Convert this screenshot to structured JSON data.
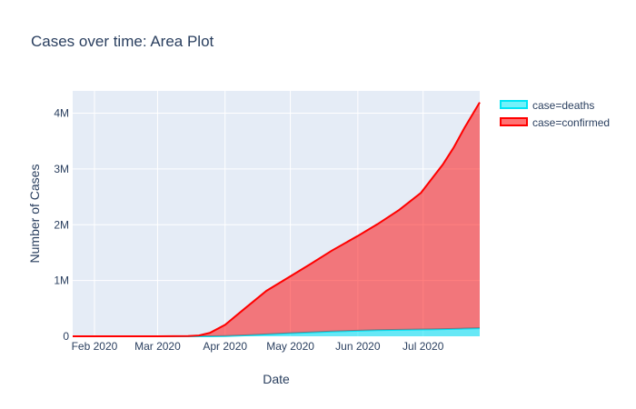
{
  "chart_data": {
    "type": "area",
    "title": "Cases over time: Area Plot",
    "xlabel": "Date",
    "ylabel": "Number of Cases",
    "x_range": [
      "2020-01-22",
      "2020-07-27"
    ],
    "ylim": [
      0,
      4400000
    ],
    "stacked": true,
    "grid": true,
    "legend_position": "top-right",
    "x_ticks": [
      {
        "date": "2020-02-01",
        "label": "Feb 2020"
      },
      {
        "date": "2020-03-01",
        "label": "Mar 2020"
      },
      {
        "date": "2020-04-01",
        "label": "Apr 2020"
      },
      {
        "date": "2020-05-01",
        "label": "May 2020"
      },
      {
        "date": "2020-06-01",
        "label": "Jun 2020"
      },
      {
        "date": "2020-07-01",
        "label": "Jul 2020"
      }
    ],
    "y_ticks": [
      {
        "value": 0,
        "label": "0"
      },
      {
        "value": 1000000,
        "label": "1M"
      },
      {
        "value": 2000000,
        "label": "2M"
      },
      {
        "value": 3000000,
        "label": "3M"
      },
      {
        "value": 4000000,
        "label": "4M"
      }
    ],
    "x": [
      "2020-01-22",
      "2020-03-01",
      "2020-03-15",
      "2020-03-20",
      "2020-03-25",
      "2020-04-01",
      "2020-04-10",
      "2020-04-20",
      "2020-05-01",
      "2020-05-10",
      "2020-05-20",
      "2020-06-01",
      "2020-06-10",
      "2020-06-20",
      "2020-06-30",
      "2020-07-05",
      "2020-07-10",
      "2020-07-15",
      "2020-07-20",
      "2020-07-27"
    ],
    "series": [
      {
        "name": "case=deaths",
        "color": "#00e5f5",
        "values": [
          0,
          1,
          50,
          200,
          1000,
          5000,
          16000,
          35000,
          55000,
          70000,
          85000,
          100000,
          110000,
          116000,
          122000,
          125000,
          128000,
          132000,
          138000,
          145000
        ]
      },
      {
        "name": "case=confirmed",
        "color": "#ff0000",
        "values": [
          10,
          50,
          3000,
          15000,
          60000,
          200000,
          480000,
          780000,
          1020000,
          1220000,
          1450000,
          1700000,
          1900000,
          2150000,
          2450000,
          2700000,
          2950000,
          3250000,
          3600000,
          4050000
        ]
      }
    ]
  }
}
